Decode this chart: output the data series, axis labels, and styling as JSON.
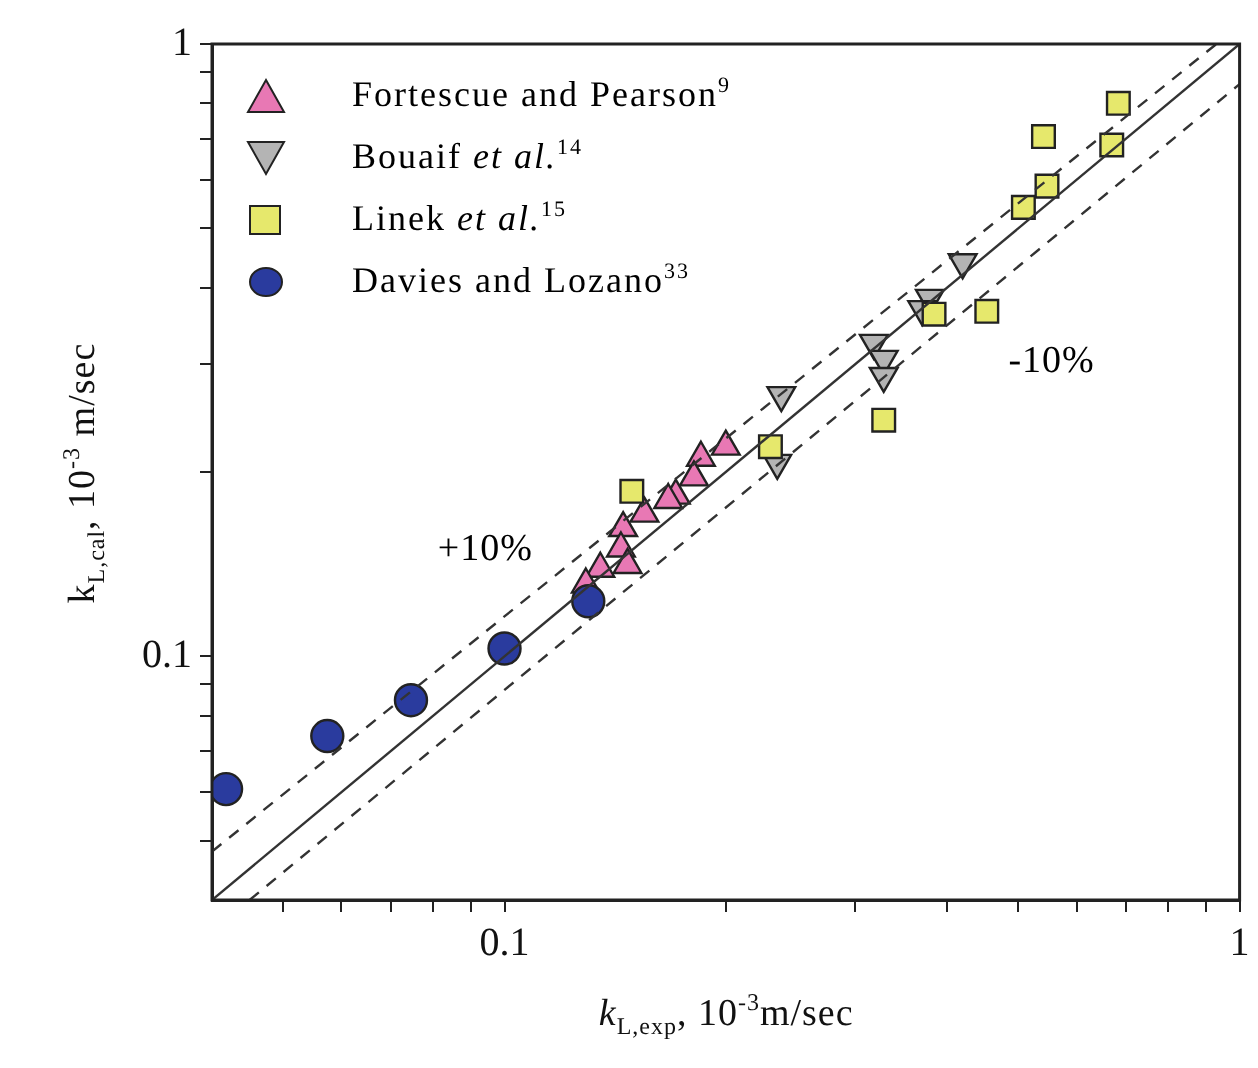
{
  "chart_data": {
    "type": "scatter",
    "xlabel": "k$_{L,exp}$, 10$^{-3}$m/sec",
    "ylabel": "k$_{L,cal}$, 10$^{-3}$ m/sec",
    "log": "xy",
    "grid": false,
    "legend": "top left",
    "xlim": [
      0.04,
      1
    ],
    "ylim": [
      0.04,
      1
    ],
    "xticks": [
      {
        "value": 0.05,
        "label": null
      },
      {
        "value": 0.06,
        "label": null
      },
      {
        "value": 0.07,
        "label": null
      },
      {
        "value": 0.08,
        "label": null
      },
      {
        "value": 0.09,
        "label": null
      },
      0.1,
      {
        "value": 0.2,
        "label": null
      },
      {
        "value": 0.3,
        "label": null
      },
      {
        "value": 0.4,
        "label": null
      },
      {
        "value": 0.5,
        "label": null
      },
      {
        "value": 0.6,
        "label": null
      },
      {
        "value": 0.7,
        "label": null
      },
      {
        "value": 0.8,
        "label": null
      },
      {
        "value": 0.9,
        "label": null
      },
      1
    ],
    "yticks": [
      {
        "value": 0.05,
        "label": null
      },
      {
        "value": 0.06,
        "label": null
      },
      {
        "value": 0.07,
        "label": null
      },
      {
        "value": 0.08,
        "label": null
      },
      {
        "value": 0.09,
        "label": null
      },
      0.1,
      {
        "value": 0.2,
        "label": null
      },
      {
        "value": 0.3,
        "label": null
      },
      {
        "value": 0.4,
        "label": null
      },
      {
        "value": 0.5,
        "label": null
      },
      {
        "value": 0.6,
        "label": null
      },
      {
        "value": 0.7,
        "label": null
      },
      {
        "value": 0.8,
        "label": null
      },
      {
        "value": 0.9,
        "label": null
      },
      1
    ],
    "annotations": [
      "+10%",
      "-10%"
    ],
    "series": [
      {
        "name": "Fortescue and Pearson$^{9}$",
        "marker": "triangle",
        "color": "#e878b4",
        "x": [
          0.2,
          0.185,
          0.181,
          0.171,
          0.167,
          0.155,
          0.145,
          0.144,
          0.147,
          0.135,
          0.129
        ],
        "values": [
          0.22,
          0.211,
          0.196,
          0.183,
          0.18,
          0.171,
          0.162,
          0.15,
          0.141,
          0.139,
          0.131
        ]
      },
      {
        "name": "Bouaif et al.$^{14}$",
        "marker": "triangle-down",
        "color": "#b4b4b4",
        "x": [
          0.42,
          0.379,
          0.37,
          0.318,
          0.328,
          0.328,
          0.238,
          0.235
        ],
        "values": [
          0.44,
          0.385,
          0.369,
          0.325,
          0.306,
          0.287,
          0.267,
          0.207
        ]
      },
      {
        "name": "Linek et al.$^{15}$",
        "marker": "square",
        "color": "#e6e86c",
        "x": [
          0.684,
          0.541,
          0.67,
          0.547,
          0.508,
          0.384,
          0.453,
          0.328,
          0.23,
          0.149
        ],
        "values": [
          0.8,
          0.706,
          0.684,
          0.586,
          0.541,
          0.362,
          0.366,
          0.243,
          0.22,
          0.186
        ]
      },
      {
        "name": "Davies and Lozano$^{33}$",
        "marker": "circle",
        "color": "#2a3b9e",
        "x": [
          0.0418,
          0.0574,
          0.0746,
          0.1,
          0.13
        ],
        "values": [
          0.0607,
          0.0741,
          0.0848,
          0.103,
          0.123
        ]
      },
      {
        "type": "line",
        "line_style": "solid",
        "color": "#333333",
        "x": [
          0.04,
          1
        ],
        "values": [
          0.04,
          1
        ]
      },
      {
        "type": "line",
        "line_style": "dashed",
        "color": "#333333",
        "x": [
          0.04,
          0.93
        ],
        "values": [
          0.048,
          1
        ]
      },
      {
        "type": "line",
        "line_style": "dashed",
        "color": "#333333",
        "x": [
          0.045,
          1
        ],
        "values": [
          0.04,
          0.86
        ]
      }
    ]
  }
}
